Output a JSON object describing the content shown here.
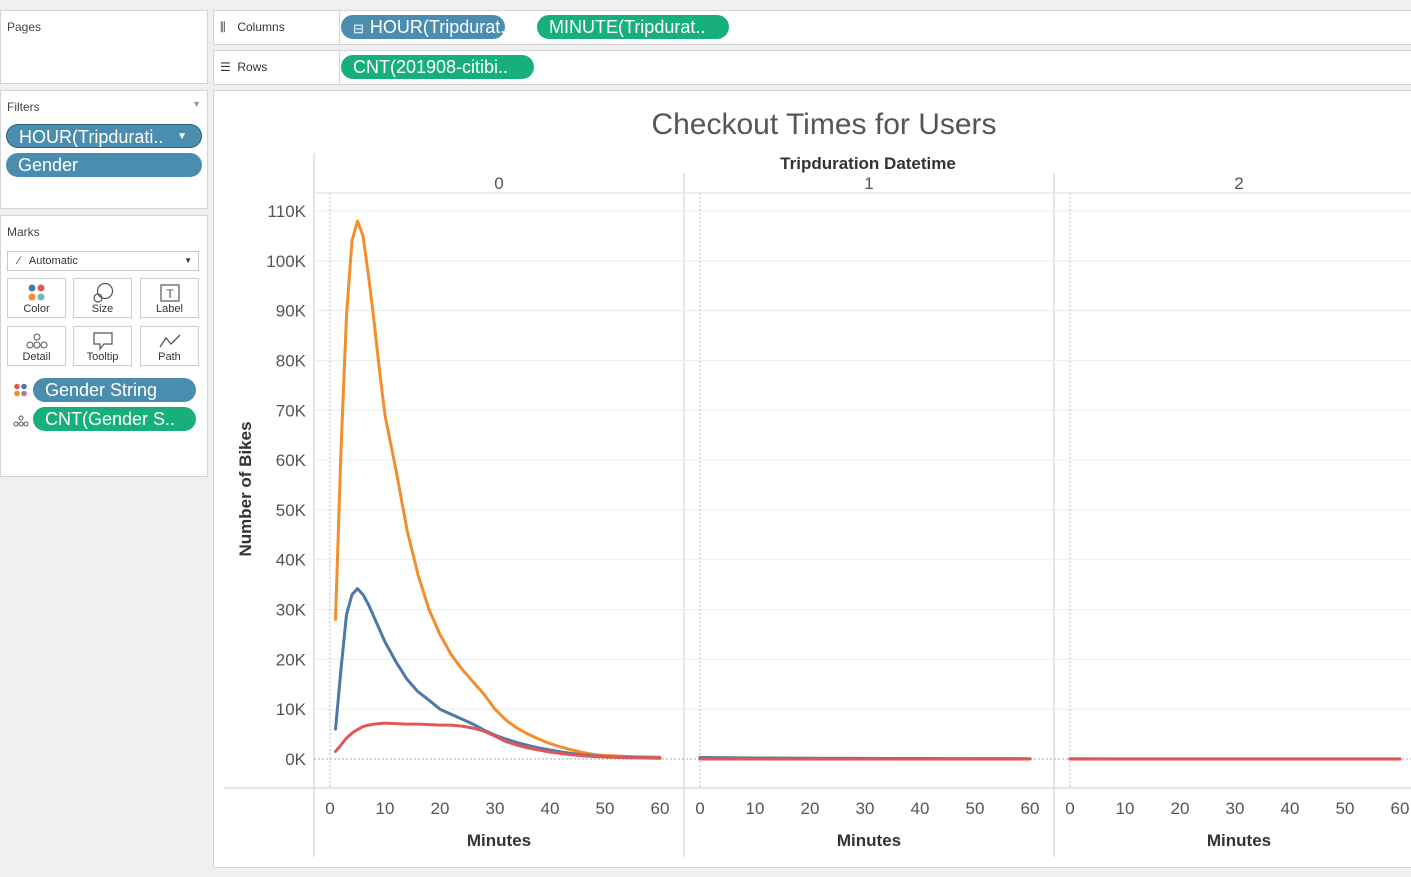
{
  "pages": {
    "label": "Pages"
  },
  "shelves": {
    "columns": {
      "label": "Columns",
      "pills": [
        "HOUR(Tripdurat..",
        "MINUTE(Tripdurat.."
      ]
    },
    "rows": {
      "label": "Rows",
      "pills": [
        "CNT(201908-citibi.."
      ]
    }
  },
  "filters": {
    "label": "Filters",
    "pills": [
      "HOUR(Tripdurati..",
      "Gender"
    ]
  },
  "marks": {
    "label": "Marks",
    "type": "Automatic",
    "buttons": [
      "Color",
      "Size",
      "Label",
      "Detail",
      "Tooltip",
      "Path"
    ],
    "fields": [
      "Gender String",
      "CNT(Gender S.."
    ]
  },
  "colors": {
    "pill_blue": "#4b8daf",
    "pill_green": "#17b07b",
    "orange": "#f28e2b",
    "blue": "#4e79a7",
    "red": "#e15759"
  },
  "chart_data": {
    "type": "line",
    "title": "Checkout Times for Users",
    "column_header": "Tripduration Datetime",
    "panes": [
      "0",
      "1",
      "2"
    ],
    "xlabel": "Minutes",
    "ylabel": "Number of Bikes",
    "xlim": [
      0,
      60
    ],
    "ylim": [
      0,
      110000
    ],
    "x_ticks": [
      0,
      10,
      20,
      30,
      40,
      50,
      60
    ],
    "y_ticks": [
      "0K",
      "10K",
      "20K",
      "30K",
      "40K",
      "50K",
      "60K",
      "70K",
      "80K",
      "90K",
      "100K",
      "110K"
    ],
    "y_tick_values": [
      0,
      10000,
      20000,
      30000,
      40000,
      50000,
      60000,
      70000,
      80000,
      90000,
      100000,
      110000
    ],
    "series": [
      {
        "color": "#f28e2b",
        "panes": [
          {
            "x": [
              1,
              2,
              3,
              4,
              5,
              6,
              7,
              8,
              9,
              10,
              12,
              14,
              16,
              18,
              20,
              22,
              24,
              26,
              28,
              30,
              32,
              34,
              36,
              38,
              40,
              42,
              44,
              46,
              48,
              50,
              52,
              54,
              56,
              58,
              60
            ],
            "y": [
              28000,
              62000,
              89000,
              104000,
              108000,
              105000,
              97000,
              88000,
              78000,
              69000,
              58000,
              46000,
              37000,
              30000,
              25000,
              21000,
              18000,
              15500,
              13000,
              10000,
              7800,
              6200,
              5000,
              4000,
              3100,
              2400,
              1800,
              1300,
              900,
              700,
              600,
              500,
              450,
              400,
              350
            ]
          },
          {
            "x": [
              0,
              60
            ],
            "y": [
              0,
              0
            ]
          },
          {
            "x": [
              0,
              60
            ],
            "y": [
              0,
              0
            ]
          }
        ]
      },
      {
        "color": "#4e79a7",
        "panes": [
          {
            "x": [
              1,
              2,
              3,
              4,
              5,
              6,
              7,
              8,
              9,
              10,
              12,
              14,
              16,
              18,
              20,
              22,
              24,
              26,
              28,
              30,
              32,
              34,
              36,
              38,
              40,
              42,
              44,
              46,
              48,
              50,
              52,
              54,
              56,
              58,
              60
            ],
            "y": [
              6000,
              18000,
              29000,
              33000,
              34200,
              33000,
              31000,
              28500,
              26000,
              23500,
              19500,
              16000,
              13500,
              11800,
              10000,
              9000,
              8000,
              7000,
              5800,
              4800,
              4000,
              3300,
              2700,
              2200,
              1800,
              1400,
              1100,
              800,
              600,
              500,
              400,
              350,
              300,
              250,
              200
            ]
          },
          {
            "x": [
              0,
              10,
              20,
              30,
              40,
              50,
              60
            ],
            "y": [
              300,
              200,
              150,
              120,
              100,
              80,
              60
            ]
          },
          {
            "x": [
              0,
              10,
              20,
              30,
              40,
              50,
              60
            ],
            "y": [
              40,
              30,
              25,
              20,
              20,
              20,
              20
            ]
          }
        ]
      },
      {
        "color": "#e15759",
        "panes": [
          {
            "x": [
              1,
              2,
              3,
              4,
              5,
              6,
              7,
              8,
              9,
              10,
              12,
              14,
              16,
              18,
              20,
              22,
              24,
              26,
              28,
              30,
              32,
              34,
              36,
              38,
              40,
              42,
              44,
              46,
              48,
              50,
              52,
              54,
              56,
              58,
              60
            ],
            "y": [
              1500,
              2800,
              4200,
              5200,
              5900,
              6500,
              6800,
              7000,
              7100,
              7200,
              7100,
              7000,
              7000,
              6900,
              6800,
              6800,
              6600,
              6200,
              5600,
              4600,
              3500,
              2800,
              2200,
              1800,
              1400,
              1100,
              850,
              650,
              500,
              400,
              320,
              260,
              220,
              180,
              150
            ]
          },
          {
            "x": [
              0,
              60
            ],
            "y": [
              0,
              0
            ]
          },
          {
            "x": [
              0,
              60
            ],
            "y": [
              0,
              0
            ]
          }
        ]
      }
    ]
  }
}
